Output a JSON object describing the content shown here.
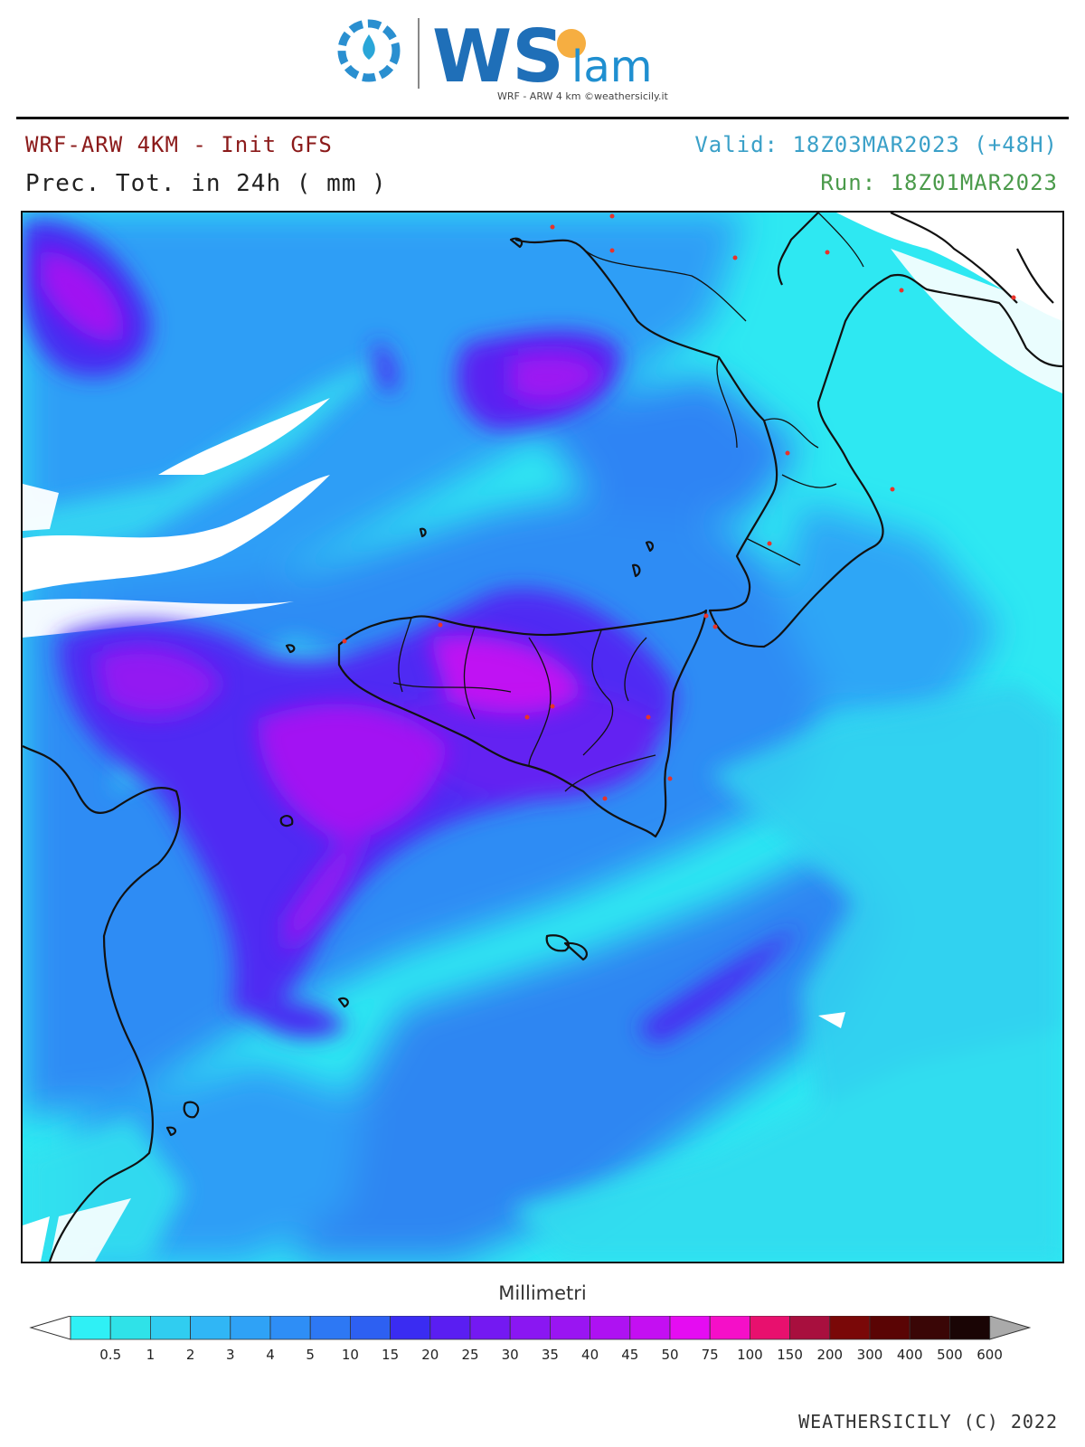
{
  "header": {
    "logo": {
      "brand": "WSlam",
      "brand_ws": "WS",
      "brand_suffix": "lam",
      "tagline": "WRF - ARW 4 km ©weathersicily.it",
      "icon": "gear-water-drop-icon"
    },
    "model_title": "WRF-ARW 4KM - Init GFS",
    "field_title": "Prec. Tot. in 24h ( mm )",
    "valid": "Valid: 18Z03MAR2023 (+48H)",
    "run": "Run: 18Z01MAR2023"
  },
  "map": {
    "region": "Sicily and southern Italy",
    "overlays": [
      "coastlines",
      "province-borders",
      "city-dots"
    ],
    "background_color": "#2ee6f0"
  },
  "legend": {
    "title": "Millimetri",
    "levels": [
      "0.5",
      "1",
      "2",
      "3",
      "4",
      "5",
      "10",
      "15",
      "20",
      "25",
      "30",
      "35",
      "40",
      "45",
      "50",
      "75",
      "100",
      "150",
      "200",
      "300",
      "400",
      "500",
      "600"
    ],
    "colors": [
      "#ffffff",
      "#2ff0f5",
      "#2fe2e8",
      "#30cdf0",
      "#30b6f5",
      "#2fa2f6",
      "#2e8ef6",
      "#2d78f4",
      "#2d60f2",
      "#3a2cf2",
      "#5a1ef2",
      "#7419f2",
      "#8a17f2",
      "#9a15f2",
      "#ae12f2",
      "#c40ff2",
      "#e50cf2",
      "#f50fc8",
      "#e8106e",
      "#a80f3e",
      "#7a0808",
      "#5a0404",
      "#3a0606",
      "#1a0505",
      "#aaaaaa"
    ]
  },
  "footer": {
    "credit": "WEATHERSICILY (C) 2022"
  }
}
